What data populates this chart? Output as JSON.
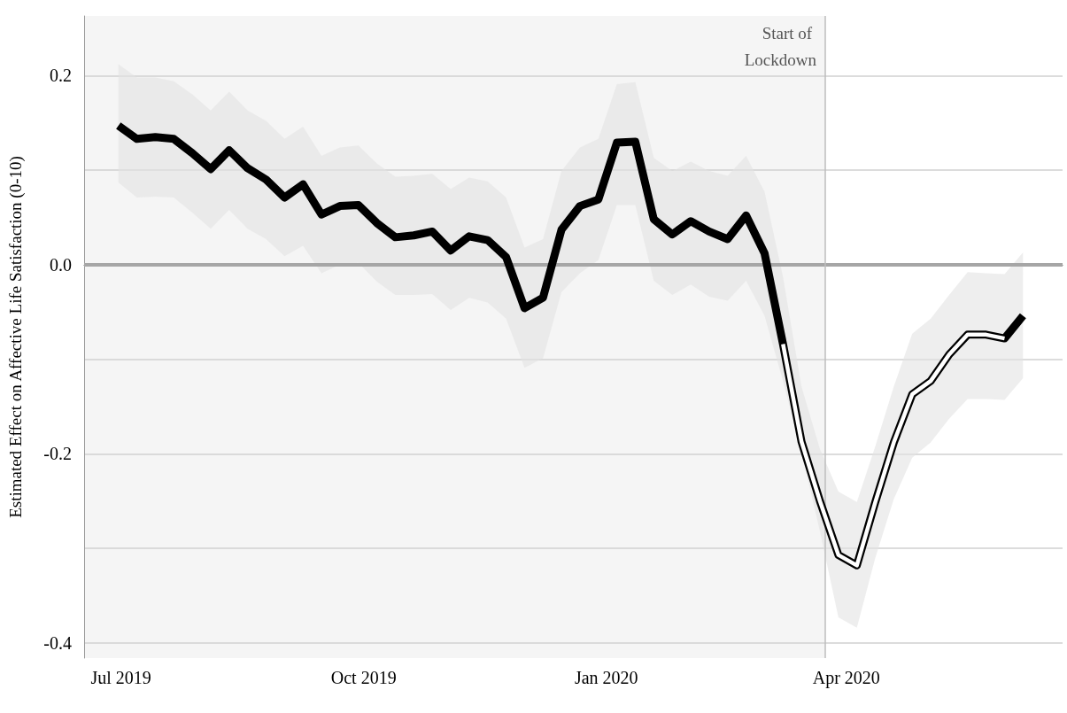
{
  "chart_data": {
    "type": "line",
    "ylabel": "Estimated Effect on Affective Life Satisfaction (0-10)",
    "x": [
      "2019-06-30",
      "2019-07-07",
      "2019-07-14",
      "2019-07-21",
      "2019-07-28",
      "2019-08-04",
      "2019-08-11",
      "2019-08-18",
      "2019-08-25",
      "2019-09-01",
      "2019-09-08",
      "2019-09-15",
      "2019-09-22",
      "2019-09-29",
      "2019-10-06",
      "2019-10-13",
      "2019-10-20",
      "2019-10-27",
      "2019-11-03",
      "2019-11-10",
      "2019-11-17",
      "2019-11-24",
      "2019-12-01",
      "2019-12-08",
      "2019-12-15",
      "2019-12-22",
      "2019-12-29",
      "2020-01-05",
      "2020-01-12",
      "2020-01-19",
      "2020-01-26",
      "2020-02-02",
      "2020-02-09",
      "2020-02-16",
      "2020-02-23",
      "2020-03-01",
      "2020-03-08",
      "2020-03-15",
      "2020-03-22",
      "2020-03-29",
      "2020-04-05",
      "2020-04-12",
      "2020-04-19",
      "2020-04-26",
      "2020-05-03",
      "2020-05-10",
      "2020-05-17",
      "2020-05-24",
      "2020-05-31",
      "2020-06-07"
    ],
    "series": [
      {
        "color": "#000000",
        "values": [
          0.147,
          0.133,
          0.135,
          0.133,
          0.118,
          0.101,
          0.121,
          0.102,
          0.09,
          0.071,
          0.085,
          0.053,
          0.062,
          0.063,
          0.044,
          0.029,
          0.031,
          0.035,
          0.015,
          0.03,
          0.026,
          0.008,
          -0.046,
          -0.035,
          0.037,
          0.062,
          0.069,
          0.129,
          0.13,
          0.048,
          0.032,
          0.046,
          0.035,
          0.027,
          0.052,
          0.012,
          -0.084,
          -0.187,
          -0.25,
          -0.307,
          -0.318,
          -0.251,
          -0.188,
          -0.137,
          -0.123,
          -0.095,
          -0.074,
          -0.074,
          -0.078,
          -0.054
        ],
        "lower": [
          0.087,
          0.071,
          0.072,
          0.071,
          0.055,
          0.038,
          0.058,
          0.038,
          0.027,
          0.009,
          0.02,
          -0.009,
          0.0,
          0.002,
          -0.018,
          -0.032,
          -0.032,
          -0.031,
          -0.048,
          -0.035,
          -0.04,
          -0.057,
          -0.109,
          -0.099,
          -0.029,
          -0.009,
          0.005,
          0.063,
          0.063,
          -0.017,
          -0.032,
          -0.021,
          -0.034,
          -0.038,
          -0.017,
          -0.054,
          -0.123,
          -0.198,
          -0.282,
          -0.373,
          -0.384,
          -0.31,
          -0.248,
          -0.204,
          -0.188,
          -0.163,
          -0.142,
          -0.142,
          -0.143,
          -0.12
        ],
        "upper": [
          0.212,
          0.198,
          0.198,
          0.194,
          0.18,
          0.163,
          0.183,
          0.163,
          0.152,
          0.133,
          0.146,
          0.115,
          0.124,
          0.126,
          0.107,
          0.093,
          0.094,
          0.096,
          0.08,
          0.092,
          0.088,
          0.071,
          0.018,
          0.027,
          0.099,
          0.124,
          0.133,
          0.191,
          0.193,
          0.113,
          0.099,
          0.109,
          0.099,
          0.094,
          0.115,
          0.077,
          -0.013,
          -0.129,
          -0.195,
          -0.24,
          -0.251,
          -0.192,
          -0.129,
          -0.073,
          -0.057,
          -0.032,
          -0.008,
          -0.009,
          -0.01,
          0.013
        ]
      },
      {
        "color": "#ffffff",
        "values": [
          null,
          null,
          null,
          null,
          null,
          null,
          null,
          null,
          null,
          null,
          null,
          null,
          null,
          null,
          null,
          null,
          null,
          null,
          null,
          null,
          null,
          null,
          null,
          null,
          null,
          null,
          null,
          null,
          null,
          null,
          null,
          null,
          null,
          null,
          null,
          null,
          -0.084,
          -0.187,
          -0.25,
          -0.307,
          -0.318,
          -0.251,
          -0.188,
          -0.137,
          -0.123,
          -0.095,
          -0.074,
          -0.074,
          -0.078,
          null
        ]
      }
    ],
    "xlim": [
      "2019-06-17",
      "2020-06-22"
    ],
    "xticks": [
      {
        "value": "2019-07-01",
        "label": "Jul 2019"
      },
      {
        "value": "2019-10-01",
        "label": "Oct 2019"
      },
      {
        "value": "2020-01-01",
        "label": "Jan 2020"
      },
      {
        "value": "2020-04-01",
        "label": "Apr 2020"
      }
    ],
    "ylim": [
      -0.416,
      0.263
    ],
    "yticks": [
      {
        "value": -0.4,
        "label": "-0.4"
      },
      {
        "value": -0.3,
        "label": null
      },
      {
        "value": -0.2,
        "label": "-0.2"
      },
      {
        "value": -0.1,
        "label": null
      },
      {
        "value": 0,
        "label": "0.0"
      },
      {
        "value": 0.1,
        "label": null
      },
      {
        "value": 0.2,
        "label": "0.2"
      }
    ],
    "grid": "y",
    "ref_lines": [
      {
        "axis": "y",
        "value": 0,
        "color": "#a6a6a6"
      },
      {
        "axis": "x",
        "value": "2020-03-24",
        "label": "Start of Lockdown",
        "color": "#bdbdbd"
      }
    ],
    "bands": [
      {
        "axis": "x",
        "from": "2019-06-17",
        "to": "2020-03-24",
        "color": "#f5f5f5"
      }
    ]
  }
}
